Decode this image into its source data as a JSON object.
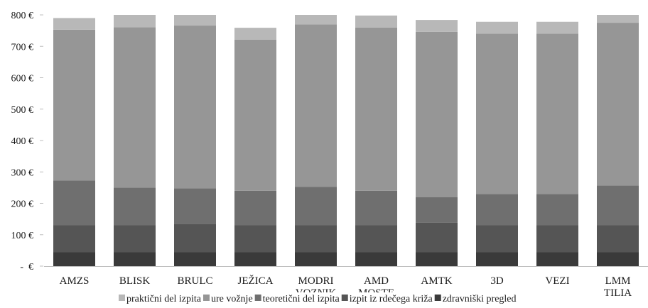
{
  "chart_data": {
    "type": "bar",
    "stacked": true,
    "categories": [
      [
        "AMZS"
      ],
      [
        "BLISK"
      ],
      [
        "BRULC"
      ],
      [
        "JEŽICA"
      ],
      [
        "MODRI",
        "VOZNIK"
      ],
      [
        "AMD",
        "MOSTE"
      ],
      [
        "AMTK"
      ],
      [
        "3D"
      ],
      [
        "VEZI"
      ],
      [
        "LMM",
        "TILIA"
      ]
    ],
    "series": [
      {
        "name": "zdravniški pregled",
        "color": "#3a3a3a",
        "values": [
          45,
          45,
          45,
          45,
          45,
          45,
          45,
          45,
          45,
          45
        ]
      },
      {
        "name": "izpit iz rdečega križa",
        "color": "#555555",
        "values": [
          85,
          85,
          90,
          85,
          85,
          85,
          93,
          85,
          85,
          85
        ]
      },
      {
        "name": "teoretični del izpita",
        "color": "#6f6f6f",
        "values": [
          143,
          120,
          113,
          110,
          122,
          110,
          82,
          100,
          100,
          127
        ]
      },
      {
        "name": "ure vožnje",
        "color": "#969696",
        "values": [
          480,
          511,
          518,
          481,
          518,
          520,
          526,
          510,
          510,
          518
        ]
      },
      {
        "name": "praktični del izpita",
        "color": "#b8b8b8",
        "values": [
          37,
          39,
          34,
          38,
          30,
          38,
          38,
          38,
          38,
          25
        ]
      }
    ],
    "y_ticks": [
      {
        "value": 0,
        "label": "-  €"
      },
      {
        "value": 100,
        "label": "100 €"
      },
      {
        "value": 200,
        "label": "200 €"
      },
      {
        "value": 300,
        "label": "300 €"
      },
      {
        "value": 400,
        "label": "400 €"
      },
      {
        "value": 500,
        "label": "500 €"
      },
      {
        "value": 600,
        "label": "600 €"
      },
      {
        "value": 700,
        "label": "700 €"
      },
      {
        "value": 800,
        "label": "800 €"
      }
    ],
    "ylim": [
      0,
      800
    ],
    "legend_order": [
      "praktični del izpita",
      "ure vožnje",
      "teoretični del izpita",
      "izpit iz rdečega križa",
      "zdravniški pregled"
    ],
    "legend_position": "bottom",
    "title": "",
    "xlabel": "",
    "ylabel": "",
    "grid": false
  }
}
